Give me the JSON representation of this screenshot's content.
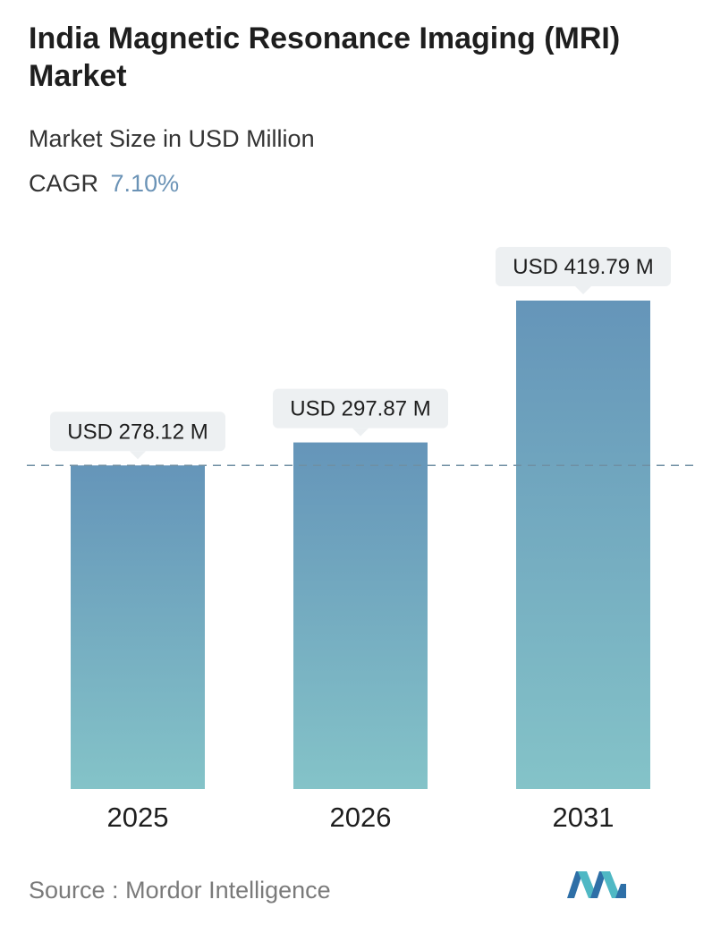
{
  "title": "India Magnetic Resonance Imaging (MRI) Market",
  "subtitle": "Market Size in USD Million",
  "cagr": {
    "label": "CAGR",
    "value": "7.10%"
  },
  "source": {
    "label": "Source :",
    "name": "Mordor Intelligence"
  },
  "colors": {
    "bar_top": "#6595b9",
    "bar_bottom": "#84c3c8",
    "label_bg": "#edf0f2",
    "dashed_line": "#6f8fa3",
    "cagr_accent": "#6b93b6"
  },
  "chart_data": {
    "type": "bar",
    "categories": [
      "2025",
      "2026",
      "2031"
    ],
    "values": [
      278.12,
      297.87,
      419.79
    ],
    "data_labels": [
      "USD 278.12 M",
      "USD 297.87 M",
      "USD 419.79 M"
    ],
    "unit": "USD Million",
    "reference_line": {
      "value": 278.12,
      "style": "dashed"
    },
    "grid": false,
    "legend": "none"
  }
}
